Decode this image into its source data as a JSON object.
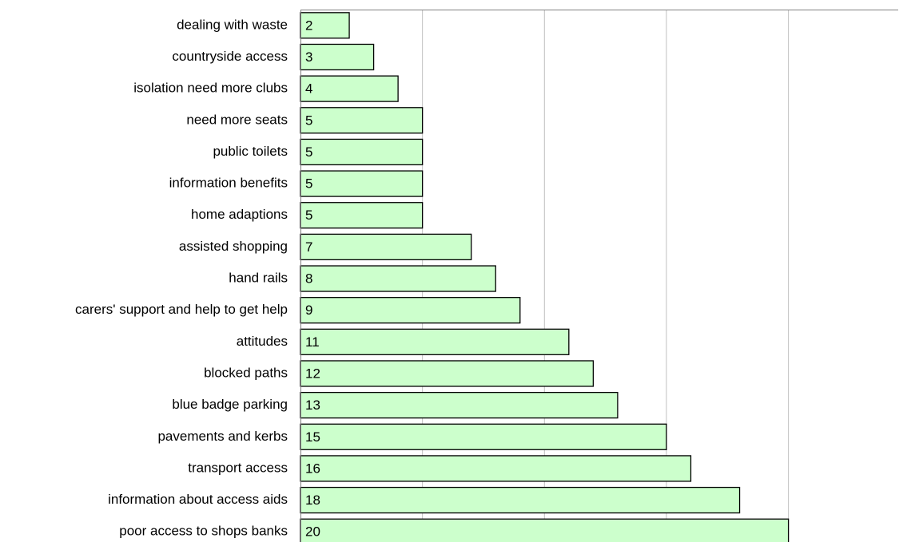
{
  "chart_data": {
    "type": "bar",
    "orientation": "horizontal",
    "categories": [
      "dealing with waste",
      "countryside access",
      "isolation need more clubs",
      "need more seats",
      "public toilets",
      "information benefits",
      "home adaptions",
      "assisted shopping",
      "hand rails",
      "carers' support and help to get help",
      "attitudes",
      "blocked paths",
      "blue badge parking",
      "pavements and kerbs",
      "transport access",
      "information about access aids",
      "poor access to shops banks"
    ],
    "values": [
      2,
      3,
      4,
      5,
      5,
      5,
      5,
      7,
      8,
      9,
      11,
      12,
      13,
      15,
      16,
      18,
      20
    ],
    "color": "#ccffcc",
    "xlim": [
      0,
      24.5
    ],
    "xticks": [
      0,
      5,
      10,
      15,
      20
    ],
    "grid": true
  }
}
